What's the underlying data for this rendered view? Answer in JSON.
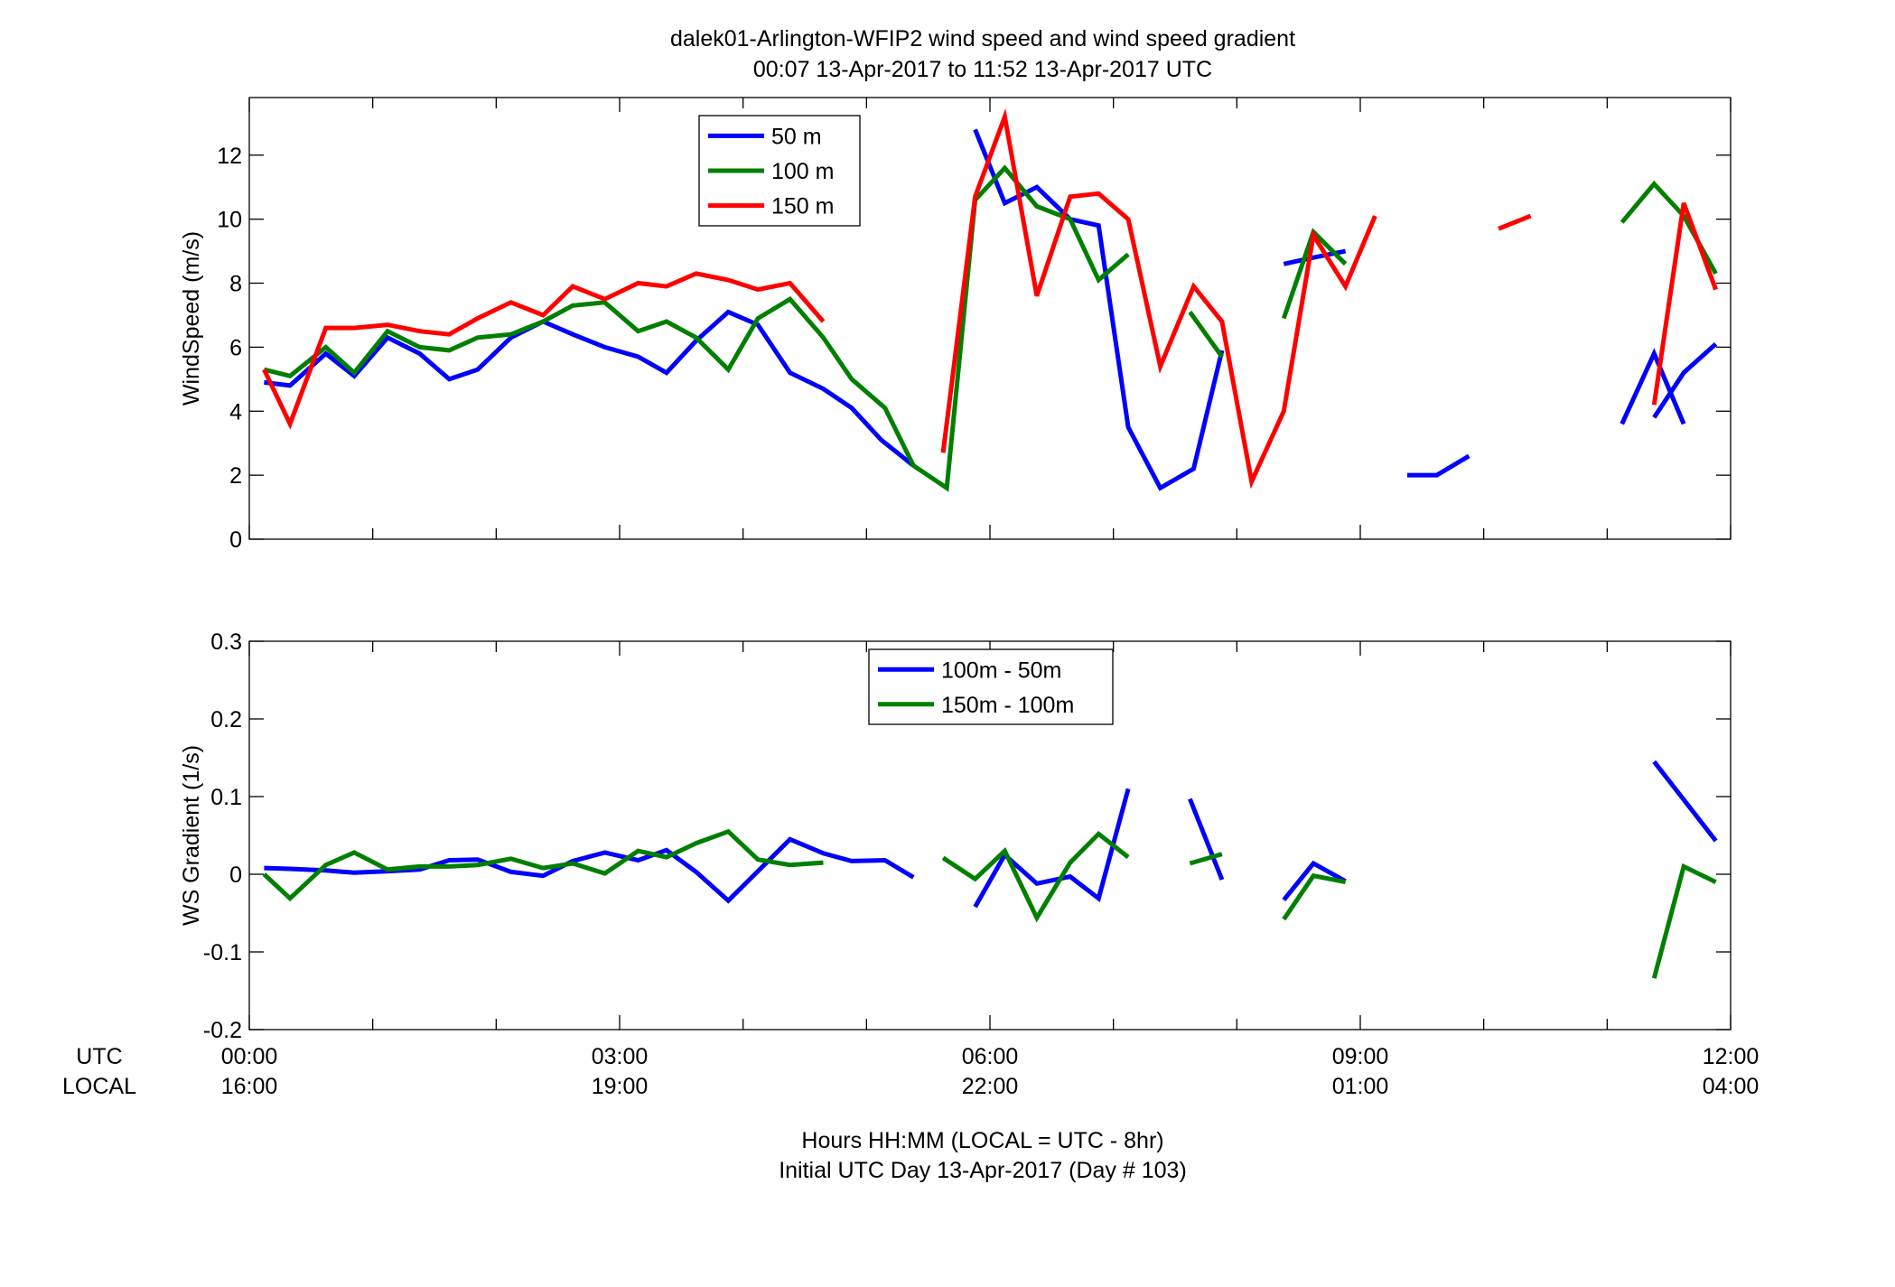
{
  "chart_data": {
    "type": "line",
    "title": "dalek01-Arlington-WFIP2  wind speed and wind speed gradient",
    "subtitle": "00:07 13-Apr-2017 to 11:52 13-Apr-2017  UTC",
    "xlabel": "Hours HH:MM  (LOCAL = UTC - 8hr)",
    "xlabel2": "Initial UTC Day 13-Apr-2017 (Day # 103)",
    "xrow_labels": [
      "UTC",
      "LOCAL"
    ],
    "xlim": [
      0,
      12
    ],
    "xticks_utc": [
      "00:00",
      "03:00",
      "06:00",
      "09:00",
      "12:00"
    ],
    "xticks_local": [
      "16:00",
      "19:00",
      "22:00",
      "01:00",
      "04:00"
    ],
    "panels": [
      {
        "ylabel": "WindSpeed (m/s)",
        "ylim": [
          0,
          13.8
        ],
        "yticks": [
          "0",
          "2",
          "4",
          "6",
          "8",
          "10",
          "12"
        ],
        "legend_position": "upper-left-inside",
        "series": [
          {
            "name": "50 m",
            "color": "#0000FF",
            "segments": [
              [
                [
                  0.12,
                  4.9
                ],
                [
                  0.33,
                  4.8
                ],
                [
                  0.62,
                  5.8
                ],
                [
                  0.85,
                  5.1
                ],
                [
                  1.12,
                  6.3
                ],
                [
                  1.38,
                  5.8
                ],
                [
                  1.62,
                  5.0
                ],
                [
                  1.85,
                  5.3
                ],
                [
                  2.12,
                  6.3
                ],
                [
                  2.38,
                  6.8
                ],
                [
                  2.62,
                  6.4
                ],
                [
                  2.88,
                  6.0
                ],
                [
                  3.15,
                  5.7
                ],
                [
                  3.38,
                  5.2
                ],
                [
                  3.62,
                  6.2
                ],
                [
                  3.88,
                  7.1
                ],
                [
                  4.12,
                  6.7
                ],
                [
                  4.38,
                  5.2
                ],
                [
                  4.65,
                  4.7
                ],
                [
                  4.88,
                  4.1
                ],
                [
                  5.12,
                  3.1
                ],
                [
                  5.38,
                  2.3
                ]
              ],
              [
                [
                  5.88,
                  12.8
                ],
                [
                  6.12,
                  10.5
                ],
                [
                  6.38,
                  11.0
                ],
                [
                  6.65,
                  10.0
                ],
                [
                  6.88,
                  9.8
                ],
                [
                  7.12,
                  3.5
                ],
                [
                  7.38,
                  1.6
                ],
                [
                  7.65,
                  2.2
                ],
                [
                  7.88,
                  5.9
                ]
              ],
              [
                [
                  8.38,
                  8.6
                ],
                [
                  8.62,
                  8.8
                ],
                [
                  8.88,
                  9.0
                ]
              ],
              [
                [
                  9.38,
                  2.0
                ],
                [
                  9.62,
                  2.0
                ],
                [
                  9.88,
                  2.6
                ]
              ],
              [
                [
                  11.12,
                  3.6
                ],
                [
                  11.38,
                  5.8
                ],
                [
                  11.62,
                  3.6
                ]
              ],
              [
                [
                  11.38,
                  3.8
                ],
                [
                  11.62,
                  5.2
                ],
                [
                  11.88,
                  6.1
                ]
              ]
            ]
          },
          {
            "name": "100 m",
            "color": "#007F00",
            "segments": [
              [
                [
                  0.12,
                  5.3
                ],
                [
                  0.33,
                  5.1
                ],
                [
                  0.62,
                  6.0
                ],
                [
                  0.85,
                  5.2
                ],
                [
                  1.12,
                  6.5
                ],
                [
                  1.38,
                  6.0
                ],
                [
                  1.62,
                  5.9
                ],
                [
                  1.85,
                  6.3
                ],
                [
                  2.12,
                  6.4
                ],
                [
                  2.38,
                  6.8
                ],
                [
                  2.62,
                  7.3
                ],
                [
                  2.88,
                  7.4
                ],
                [
                  3.15,
                  6.5
                ],
                [
                  3.38,
                  6.8
                ],
                [
                  3.62,
                  6.3
                ],
                [
                  3.88,
                  5.3
                ],
                [
                  4.12,
                  6.9
                ],
                [
                  4.38,
                  7.5
                ],
                [
                  4.65,
                  6.3
                ],
                [
                  4.88,
                  5.0
                ],
                [
                  5.15,
                  4.1
                ],
                [
                  5.38,
                  2.3
                ],
                [
                  5.65,
                  1.6
                ],
                [
                  5.88,
                  10.6
                ],
                [
                  6.12,
                  11.6
                ],
                [
                  6.38,
                  10.4
                ],
                [
                  6.65,
                  10.0
                ],
                [
                  6.88,
                  8.1
                ],
                [
                  7.12,
                  8.9
                ]
              ],
              [
                [
                  7.62,
                  7.1
                ],
                [
                  7.88,
                  5.7
                ]
              ],
              [
                [
                  8.38,
                  6.9
                ],
                [
                  8.62,
                  9.6
                ],
                [
                  8.88,
                  8.6
                ]
              ],
              [
                [
                  11.12,
                  9.9
                ],
                [
                  11.38,
                  11.1
                ],
                [
                  11.62,
                  10.1
                ],
                [
                  11.88,
                  8.3
                ]
              ]
            ]
          },
          {
            "name": "150 m",
            "color": "#FF0000",
            "segments": [
              [
                [
                  0.12,
                  5.3
                ],
                [
                  0.33,
                  3.6
                ],
                [
                  0.62,
                  6.6
                ],
                [
                  0.85,
                  6.6
                ],
                [
                  1.12,
                  6.7
                ],
                [
                  1.38,
                  6.5
                ],
                [
                  1.62,
                  6.4
                ],
                [
                  1.85,
                  6.9
                ],
                [
                  2.12,
                  7.4
                ],
                [
                  2.38,
                  7.0
                ],
                [
                  2.62,
                  7.9
                ],
                [
                  2.88,
                  7.5
                ],
                [
                  3.15,
                  8.0
                ],
                [
                  3.38,
                  7.9
                ],
                [
                  3.62,
                  8.3
                ],
                [
                  3.88,
                  8.1
                ],
                [
                  4.12,
                  7.8
                ],
                [
                  4.38,
                  8.0
                ],
                [
                  4.65,
                  6.8
                ]
              ],
              [
                [
                  5.62,
                  2.7
                ],
                [
                  5.88,
                  10.7
                ],
                [
                  6.12,
                  13.2
                ],
                [
                  6.38,
                  7.6
                ],
                [
                  6.65,
                  10.7
                ],
                [
                  6.88,
                  10.8
                ],
                [
                  7.12,
                  10.0
                ],
                [
                  7.38,
                  5.4
                ],
                [
                  7.65,
                  7.9
                ],
                [
                  7.88,
                  6.8
                ],
                [
                  8.12,
                  1.8
                ],
                [
                  8.38,
                  4.0
                ],
                [
                  8.62,
                  9.5
                ],
                [
                  8.88,
                  7.9
                ],
                [
                  9.12,
                  10.1
                ]
              ],
              [
                [
                  10.12,
                  9.7
                ],
                [
                  10.38,
                  10.1
                ]
              ],
              [
                [
                  11.38,
                  4.2
                ],
                [
                  11.62,
                  10.5
                ],
                [
                  11.88,
                  7.8
                ]
              ]
            ]
          }
        ]
      },
      {
        "ylabel": "WS Gradient (1/s)",
        "ylim": [
          -0.2,
          0.3
        ],
        "yticks": [
          "-0.2",
          "-0.1",
          "0",
          "0.1",
          "0.2",
          "0.3"
        ],
        "legend_position": "upper-center-inside",
        "series": [
          {
            "name": "100m - 50m",
            "color": "#0000FF",
            "segments": [
              [
                [
                  0.12,
                  0.008
                ],
                [
                  0.33,
                  0.007
                ],
                [
                  0.62,
                  0.005
                ],
                [
                  0.85,
                  0.002
                ],
                [
                  1.12,
                  0.004
                ],
                [
                  1.38,
                  0.006
                ],
                [
                  1.62,
                  0.018
                ],
                [
                  1.85,
                  0.019
                ],
                [
                  2.12,
                  0.003
                ],
                [
                  2.38,
                  -0.002
                ],
                [
                  2.62,
                  0.017
                ],
                [
                  2.88,
                  0.028
                ],
                [
                  3.15,
                  0.018
                ],
                [
                  3.38,
                  0.031
                ],
                [
                  3.62,
                  0.003
                ],
                [
                  3.88,
                  -0.034
                ],
                [
                  4.12,
                  0.004
                ],
                [
                  4.38,
                  0.045
                ],
                [
                  4.65,
                  0.027
                ],
                [
                  4.88,
                  0.017
                ],
                [
                  5.15,
                  0.018
                ],
                [
                  5.38,
                  -0.004
                ]
              ],
              [
                [
                  5.88,
                  -0.042
                ],
                [
                  6.12,
                  0.025
                ],
                [
                  6.38,
                  -0.012
                ],
                [
                  6.65,
                  -0.003
                ],
                [
                  6.88,
                  -0.031
                ],
                [
                  7.12,
                  0.11
                ]
              ],
              [
                [
                  7.62,
                  0.097
                ],
                [
                  7.88,
                  -0.007
                ]
              ],
              [
                [
                  8.38,
                  -0.033
                ],
                [
                  8.62,
                  0.014
                ],
                [
                  8.88,
                  -0.009
                ]
              ],
              [
                [
                  11.38,
                  0.145
                ],
                [
                  11.62,
                  0.096
                ],
                [
                  11.88,
                  0.043
                ]
              ]
            ]
          },
          {
            "name": "150m - 100m",
            "color": "#007F00",
            "segments": [
              [
                [
                  0.12,
                  0.0
                ],
                [
                  0.33,
                  -0.031
                ],
                [
                  0.62,
                  0.012
                ],
                [
                  0.85,
                  0.028
                ],
                [
                  1.12,
                  0.006
                ],
                [
                  1.38,
                  0.01
                ],
                [
                  1.62,
                  0.01
                ],
                [
                  1.85,
                  0.012
                ],
                [
                  2.12,
                  0.02
                ],
                [
                  2.38,
                  0.008
                ],
                [
                  2.62,
                  0.014
                ],
                [
                  2.88,
                  0.001
                ],
                [
                  3.15,
                  0.03
                ],
                [
                  3.38,
                  0.022
                ],
                [
                  3.62,
                  0.04
                ],
                [
                  3.88,
                  0.055
                ],
                [
                  4.12,
                  0.019
                ],
                [
                  4.38,
                  0.012
                ],
                [
                  4.65,
                  0.015
                ]
              ],
              [
                [
                  5.62,
                  0.021
                ],
                [
                  5.88,
                  -0.006
                ],
                [
                  6.12,
                  0.03
                ],
                [
                  6.38,
                  -0.056
                ],
                [
                  6.65,
                  0.015
                ],
                [
                  6.88,
                  0.052
                ],
                [
                  7.12,
                  0.022
                ]
              ],
              [
                [
                  7.62,
                  0.014
                ],
                [
                  7.88,
                  0.026
                ]
              ],
              [
                [
                  8.38,
                  -0.058
                ],
                [
                  8.62,
                  -0.002
                ],
                [
                  8.88,
                  -0.01
                ]
              ],
              [
                [
                  11.38,
                  -0.134
                ],
                [
                  11.62,
                  0.01
                ],
                [
                  11.88,
                  -0.01
                ]
              ]
            ]
          }
        ]
      }
    ]
  }
}
